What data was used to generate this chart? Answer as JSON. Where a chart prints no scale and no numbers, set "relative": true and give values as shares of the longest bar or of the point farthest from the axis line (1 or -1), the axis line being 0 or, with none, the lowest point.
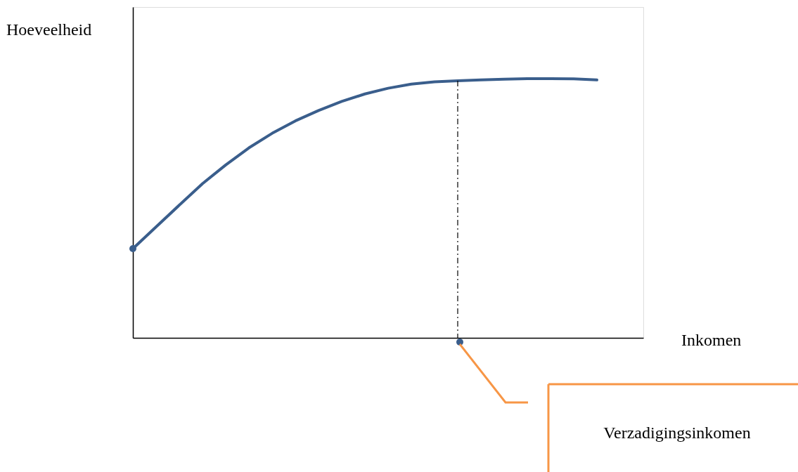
{
  "chart_data": {
    "type": "line",
    "relative": true,
    "xlabel": "Inkomen",
    "ylabel": "Hoeveelheid",
    "categories": [
      null,
      null,
      null,
      null,
      null,
      null,
      null,
      null,
      null,
      null,
      null,
      null,
      null,
      null,
      null,
      null,
      null,
      null,
      null,
      null,
      null,
      null,
      null
    ],
    "line_style": "solid",
    "series": [
      {
        "color": "#3a5e8c",
        "values": [
          0.344,
          0.428,
          0.512,
          0.595,
          0.667,
          0.733,
          0.789,
          0.837,
          0.877,
          0.912,
          0.941,
          0.963,
          0.979,
          0.988,
          0.992,
          0.995,
          0.998,
          1.0,
          1.0,
          0.999,
          0.995,
          null,
          null
        ]
      }
    ],
    "annotations": [
      "Verzadigingsinkomen"
    ]
  }
}
